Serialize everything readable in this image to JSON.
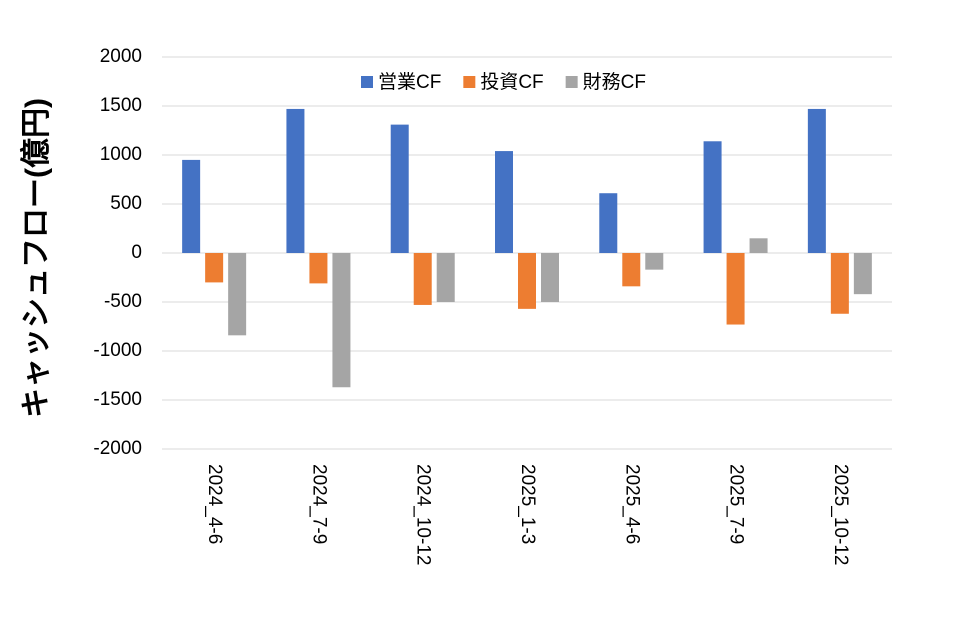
{
  "chart_data": {
    "type": "bar",
    "y_label": "キャッシュフロー(億円)",
    "categories": [
      "2024_4-6",
      "2024_7-9",
      "2024_10-12",
      "2025_1-3",
      "2025_4-6",
      "2025_7-9",
      "2025_10-12"
    ],
    "series": [
      {
        "name": "営業CF",
        "color": "#4472c4",
        "values": [
          950,
          1470,
          1310,
          1040,
          610,
          1140,
          1470
        ]
      },
      {
        "name": "投資CF",
        "color": "#ed7d31",
        "values": [
          -300,
          -310,
          -530,
          -570,
          -340,
          -730,
          -620
        ]
      },
      {
        "name": "財務CF",
        "color": "#a5a5a5",
        "values": [
          -840,
          -1370,
          -500,
          -500,
          -170,
          150,
          -420
        ]
      }
    ],
    "ylim": [
      -2000,
      2000
    ],
    "yticks": [
      -2000,
      -1500,
      -1000,
      -500,
      0,
      500,
      1000,
      1500,
      2000
    ],
    "grid": true,
    "legend": "top"
  }
}
